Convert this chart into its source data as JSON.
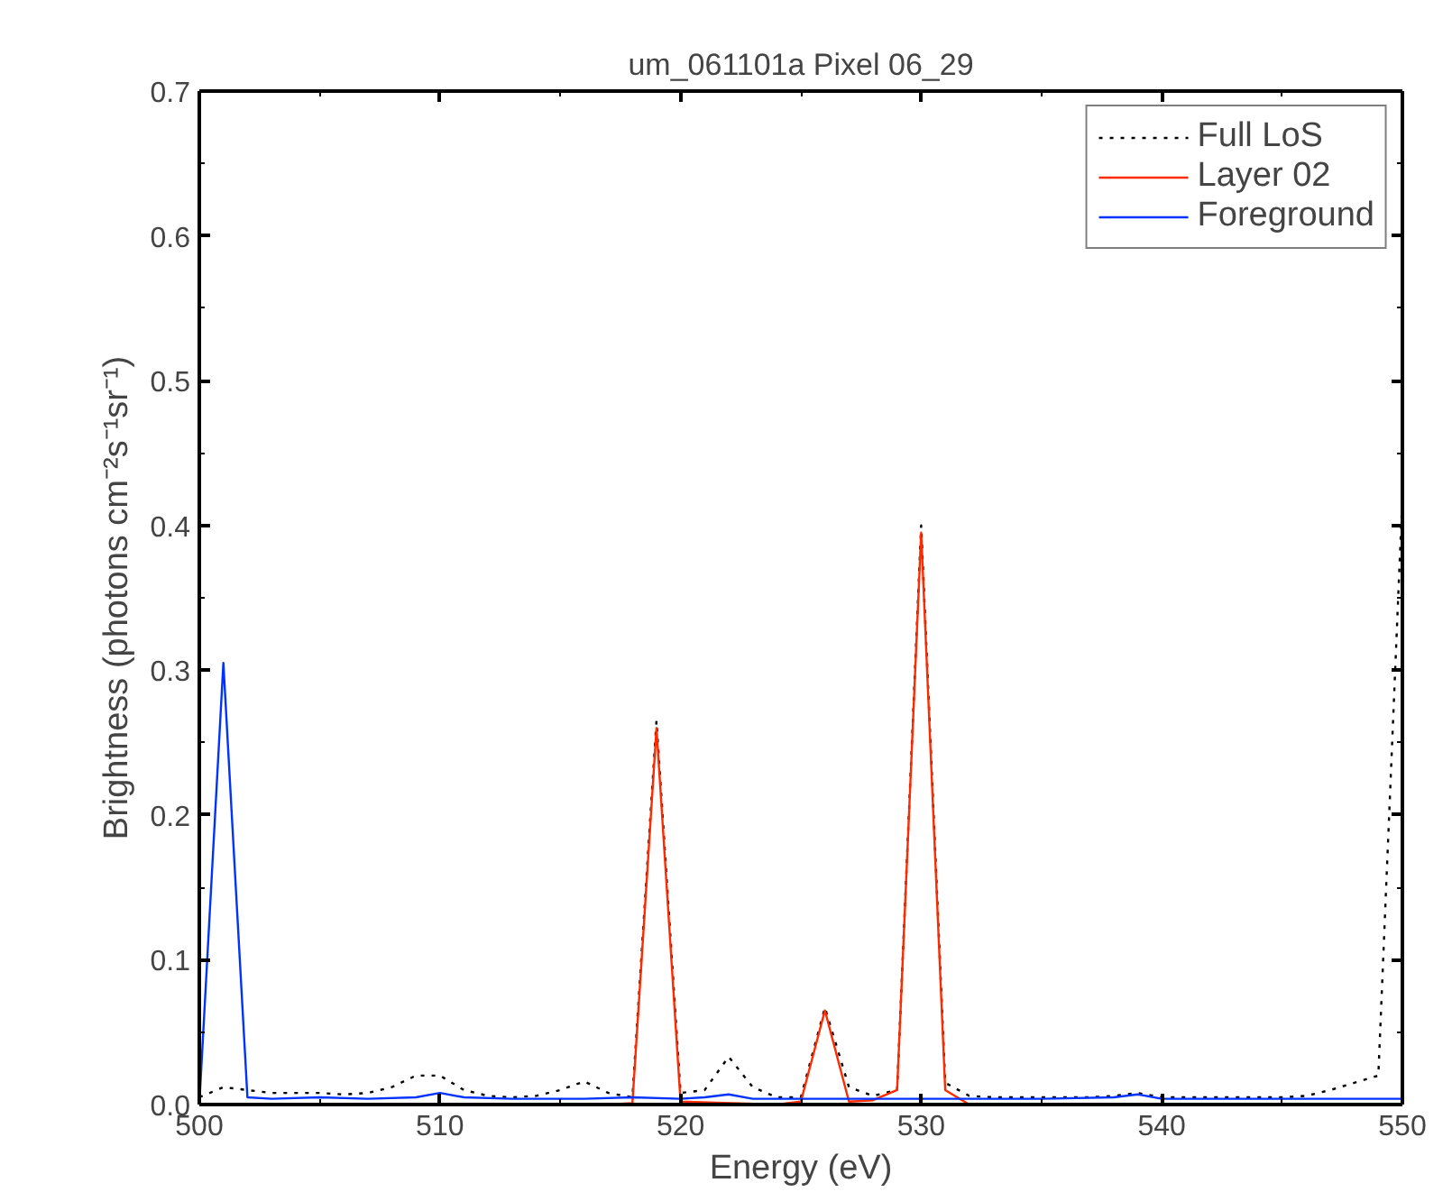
{
  "chart_data": {
    "type": "line",
    "title": "um_061101a Pixel 06_29",
    "xlabel": "Energy (eV)",
    "ylabel": "Brightness (photons cm⁻²s⁻¹sr⁻¹)",
    "xlim": [
      500,
      550
    ],
    "xticks": [
      500,
      510,
      520,
      530,
      540,
      550
    ],
    "ylim": [
      0,
      0.7
    ],
    "yticks": [
      {
        "value": 0,
        "label": "0.0"
      },
      0.1,
      0.2,
      0.3,
      0.4,
      0.5,
      0.6,
      0.7
    ],
    "grid": false,
    "legend": "top right",
    "marker": "none",
    "series": [
      {
        "name": "Full LoS",
        "color": "#000000",
        "line_style": "dotted",
        "x": [
          500,
          501,
          502,
          503,
          504,
          505,
          506,
          507,
          508,
          509,
          510,
          511,
          512,
          513,
          514,
          515,
          516,
          517,
          518,
          519,
          520,
          521,
          522,
          523,
          524,
          525,
          526,
          527,
          528,
          529,
          530,
          531,
          532,
          533,
          534,
          535,
          536,
          537,
          538,
          539,
          540,
          541,
          542,
          543,
          544,
          545,
          546,
          547,
          548,
          549,
          550
        ],
        "values": [
          0.005,
          0.012,
          0.01,
          0.008,
          0.008,
          0.008,
          0.007,
          0.008,
          0.012,
          0.02,
          0.02,
          0.01,
          0.006,
          0.005,
          0.006,
          0.01,
          0.016,
          0.008,
          0.005,
          0.265,
          0.008,
          0.01,
          0.033,
          0.012,
          0.005,
          0.005,
          0.067,
          0.012,
          0.006,
          0.01,
          0.4,
          0.015,
          0.006,
          0.005,
          0.005,
          0.005,
          0.005,
          0.005,
          0.006,
          0.008,
          0.005,
          0.005,
          0.005,
          0.005,
          0.005,
          0.005,
          0.006,
          0.01,
          0.015,
          0.02,
          0.42
        ]
      },
      {
        "name": "Layer 02",
        "color": "#ff2a00",
        "line_style": "solid",
        "x": [
          500,
          517,
          518,
          519,
          520,
          524,
          525,
          526,
          527,
          528,
          529,
          530,
          531,
          532,
          550
        ],
        "values": [
          0,
          0,
          0.001,
          0.26,
          0.002,
          0,
          0.002,
          0.065,
          0.002,
          0.003,
          0.01,
          0.395,
          0.01,
          0,
          0
        ]
      },
      {
        "name": "Foreground",
        "color": "#0033ff",
        "line_style": "solid",
        "x": [
          500,
          501,
          502,
          503,
          505,
          507,
          509,
          510,
          511,
          513,
          516,
          518,
          520,
          521,
          522,
          523,
          525,
          530,
          535,
          538,
          539,
          540,
          545,
          550
        ],
        "values": [
          0,
          0.305,
          0.005,
          0.004,
          0.005,
          0.004,
          0.005,
          0.008,
          0.005,
          0.004,
          0.004,
          0.005,
          0.004,
          0.005,
          0.007,
          0.004,
          0.004,
          0.004,
          0.004,
          0.005,
          0.007,
          0.004,
          0.004,
          0.004
        ]
      }
    ]
  }
}
